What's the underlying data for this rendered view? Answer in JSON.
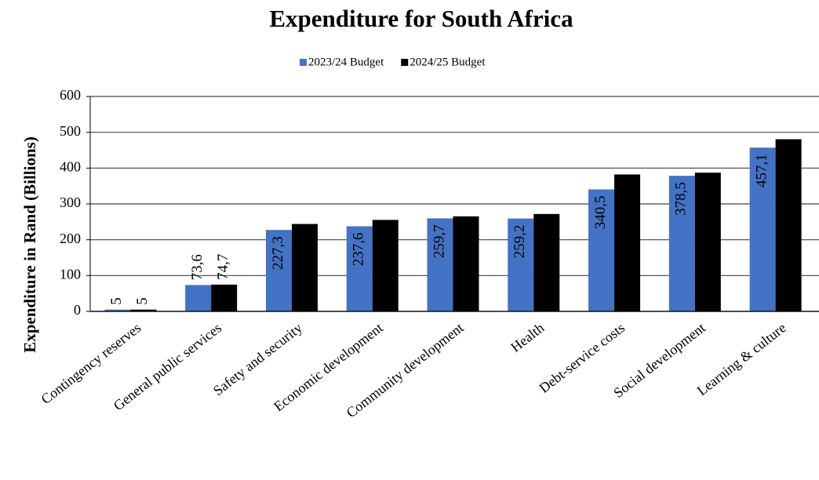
{
  "chart_data": {
    "type": "bar",
    "title": "Expenditure for South Africa",
    "y_axis_label": "Expenditure in Rand (Billions)",
    "categories": [
      "Contingency reserves",
      "General public services",
      "Safety and security",
      "Economic development",
      "Community development",
      "Health",
      "Debt-service costs",
      "Social development",
      "Learning & culture"
    ],
    "series": [
      {
        "name": "2023/24 Budget",
        "color": "#4472c4",
        "values": [
          5,
          73.6,
          227.3,
          237.6,
          259.7,
          259.2,
          340.5,
          378.5,
          457.1
        ],
        "value_labels": [
          "5",
          "73,6",
          "227,3",
          "237,6",
          "259,7",
          "259,2",
          "340,5",
          "378,5",
          "457,1"
        ]
      },
      {
        "name": "2024/25 Budget",
        "color": "#000000",
        "values": [
          5,
          74.7,
          244,
          255.4,
          265.3,
          271.9,
          382.2,
          387.3,
          480.6
        ],
        "value_labels": [
          "5",
          "74,7",
          "244",
          "255,4",
          "265,3",
          "271,9",
          "382,2",
          "387,3",
          "480,6"
        ]
      }
    ],
    "ylim": [
      0,
      600
    ],
    "yticks": [
      0,
      100,
      200,
      300,
      400,
      500,
      600
    ],
    "grid": true,
    "legend": "top"
  }
}
